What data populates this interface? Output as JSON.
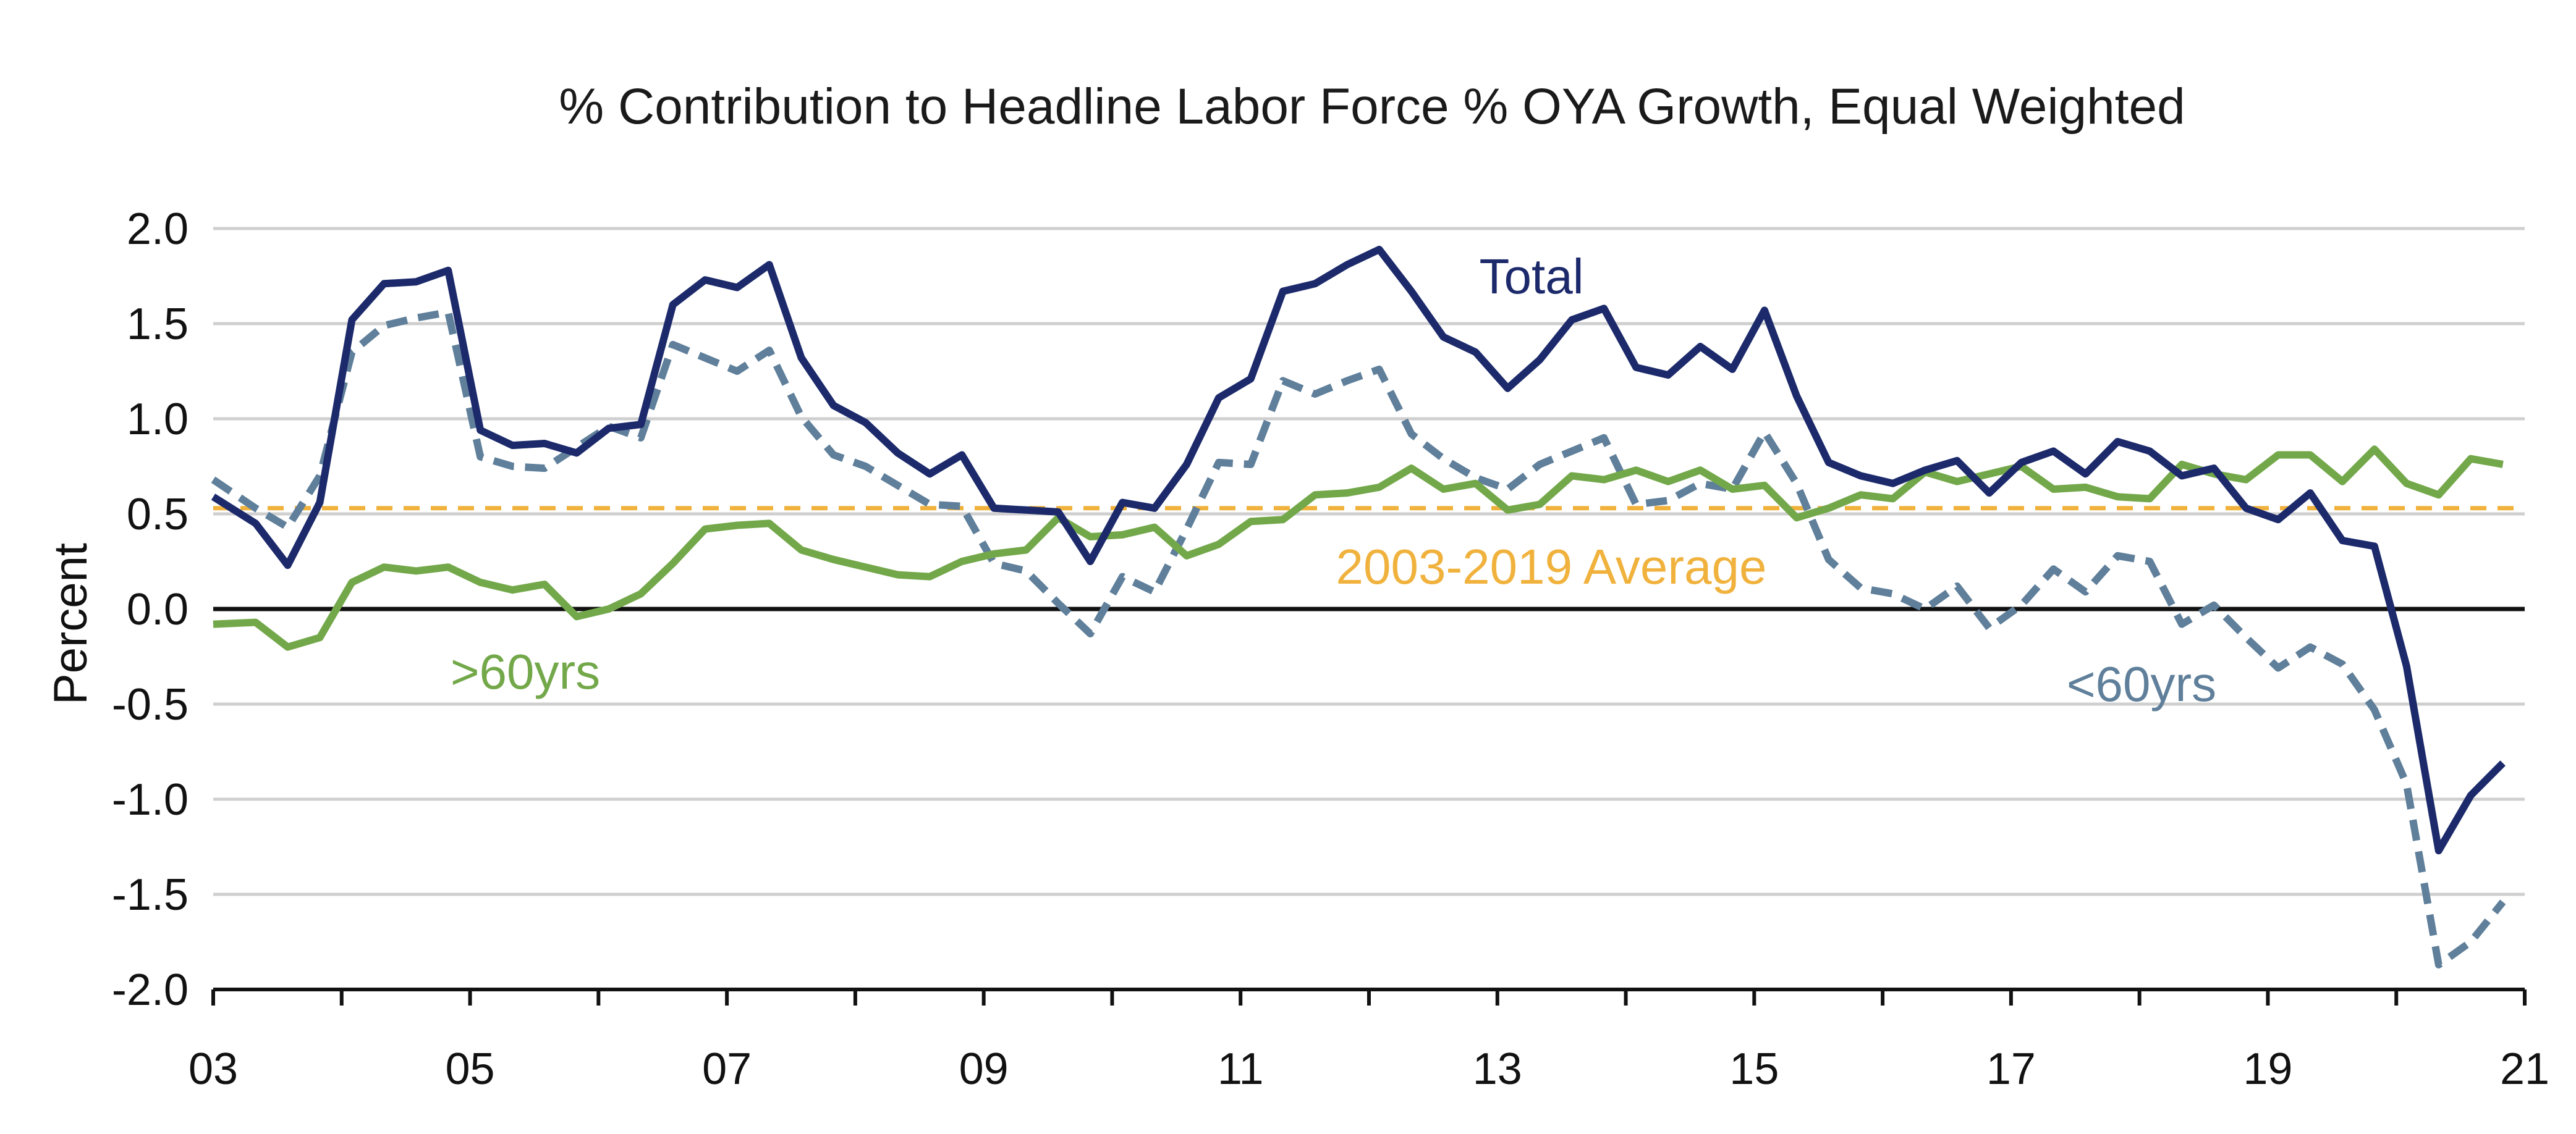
{
  "chart_data": {
    "type": "line",
    "title": "% Contribution to Headline Labor Force % OYA Growth, Equal Weighted",
    "xlabel": "",
    "ylabel": "Percent",
    "xlim": [
      2003,
      2021
    ],
    "ylim": [
      -2.0,
      2.0
    ],
    "x_ticks": [
      2003,
      2005,
      2007,
      2009,
      2011,
      2013,
      2015,
      2017,
      2019,
      2021
    ],
    "x_tick_labels": [
      "03",
      "05",
      "07",
      "09",
      "11",
      "13",
      "15",
      "17",
      "19",
      "21"
    ],
    "y_ticks": [
      2.0,
      1.5,
      1.0,
      0.5,
      0.0,
      -0.5,
      -1.0,
      -1.5,
      -2.0
    ],
    "y_tick_labels": [
      "2.0",
      "1.5",
      "1.0",
      "0.5",
      "0.0",
      "-0.5",
      "-1.0",
      "-1.5",
      "-2.0"
    ],
    "grid": "horizontal",
    "zero_line": true,
    "reference_lines": [
      {
        "name": "2003-2019 Average",
        "value": 0.53,
        "color": "#f0b23d",
        "style": "dashed"
      }
    ],
    "series": [
      {
        "name": "Total",
        "color": "#1c2a6b",
        "style": "solid",
        "x": [
          2003.0,
          2003.33,
          2003.58,
          2003.83,
          2004.08,
          2004.33,
          2004.58,
          2004.83,
          2005.08,
          2005.33,
          2005.58,
          2005.83,
          2006.08,
          2006.33,
          2006.58,
          2006.83,
          2007.08,
          2007.33,
          2007.58,
          2007.83,
          2008.08,
          2008.33,
          2008.58,
          2008.83,
          2009.08,
          2009.33,
          2009.58,
          2009.83,
          2010.08,
          2010.33,
          2010.58,
          2010.83,
          2011.08,
          2011.33,
          2011.58,
          2011.83,
          2012.08,
          2012.33,
          2012.58,
          2012.83,
          2013.08,
          2013.33,
          2013.58,
          2013.83,
          2014.08,
          2014.33,
          2014.58,
          2014.83,
          2015.08,
          2015.33,
          2015.58,
          2015.83,
          2016.08,
          2016.33,
          2016.58,
          2016.83,
          2017.08,
          2017.33,
          2017.58,
          2017.83,
          2018.08,
          2018.33,
          2018.58,
          2018.83,
          2019.08,
          2019.33,
          2019.58,
          2019.83,
          2020.08,
          2020.33,
          2020.58,
          2020.83
        ],
        "y": [
          0.59,
          0.45,
          0.23,
          0.56,
          1.52,
          1.71,
          1.72,
          1.78,
          0.94,
          0.86,
          0.87,
          0.82,
          0.95,
          0.97,
          1.6,
          1.73,
          1.69,
          1.81,
          1.32,
          1.07,
          0.98,
          0.82,
          0.71,
          0.81,
          0.53,
          0.52,
          0.51,
          0.25,
          0.56,
          0.53,
          0.76,
          1.11,
          1.21,
          1.67,
          1.71,
          1.81,
          1.89,
          1.67,
          1.43,
          1.35,
          1.16,
          1.31,
          1.52,
          1.58,
          1.27,
          1.23,
          1.38,
          1.26,
          1.57,
          1.12,
          0.77,
          0.7,
          0.66,
          0.73,
          0.78,
          0.61,
          0.77,
          0.83,
          0.71,
          0.88,
          0.83,
          0.7,
          0.74,
          0.53,
          0.47,
          0.61,
          0.36,
          0.33,
          -0.3,
          -1.27,
          -0.98,
          -0.81
        ]
      },
      {
        "name": "<60yrs",
        "color": "#5f7f9a",
        "style": "dashed",
        "x": [
          2003.0,
          2003.33,
          2003.58,
          2003.83,
          2004.08,
          2004.33,
          2004.58,
          2004.83,
          2005.08,
          2005.33,
          2005.58,
          2005.83,
          2006.08,
          2006.33,
          2006.58,
          2006.83,
          2007.08,
          2007.33,
          2007.58,
          2007.83,
          2008.08,
          2008.33,
          2008.58,
          2008.83,
          2009.08,
          2009.33,
          2009.58,
          2009.83,
          2010.08,
          2010.33,
          2010.58,
          2010.83,
          2011.08,
          2011.33,
          2011.58,
          2011.83,
          2012.08,
          2012.33,
          2012.58,
          2012.83,
          2013.08,
          2013.33,
          2013.58,
          2013.83,
          2014.08,
          2014.33,
          2014.58,
          2014.83,
          2015.08,
          2015.33,
          2015.58,
          2015.83,
          2016.08,
          2016.33,
          2016.58,
          2016.83,
          2017.08,
          2017.33,
          2017.58,
          2017.83,
          2018.08,
          2018.33,
          2018.58,
          2018.83,
          2019.08,
          2019.33,
          2019.58,
          2019.83,
          2020.08,
          2020.33,
          2020.58,
          2020.83
        ],
        "y": [
          0.68,
          0.53,
          0.43,
          0.7,
          1.35,
          1.49,
          1.53,
          1.56,
          0.8,
          0.75,
          0.74,
          0.85,
          0.96,
          0.9,
          1.39,
          1.32,
          1.25,
          1.36,
          1.01,
          0.81,
          0.75,
          0.65,
          0.55,
          0.54,
          0.24,
          0.2,
          0.03,
          -0.13,
          0.17,
          0.09,
          0.42,
          0.77,
          0.76,
          1.2,
          1.13,
          1.2,
          1.26,
          0.92,
          0.79,
          0.69,
          0.63,
          0.76,
          0.83,
          0.9,
          0.55,
          0.57,
          0.66,
          0.63,
          0.93,
          0.66,
          0.26,
          0.11,
          0.08,
          0.0,
          0.12,
          -0.1,
          0.02,
          0.21,
          0.09,
          0.28,
          0.25,
          -0.08,
          0.02,
          -0.15,
          -0.31,
          -0.2,
          -0.29,
          -0.53,
          -0.92,
          -1.87,
          -1.75,
          -1.54
        ]
      },
      {
        "name": ">60yrs",
        "color": "#73a84a",
        "style": "solid",
        "x": [
          2003.0,
          2003.33,
          2003.58,
          2003.83,
          2004.08,
          2004.33,
          2004.58,
          2004.83,
          2005.08,
          2005.33,
          2005.58,
          2005.83,
          2006.08,
          2006.33,
          2006.58,
          2006.83,
          2007.08,
          2007.33,
          2007.58,
          2007.83,
          2008.08,
          2008.33,
          2008.58,
          2008.83,
          2009.08,
          2009.33,
          2009.58,
          2009.83,
          2010.08,
          2010.33,
          2010.58,
          2010.83,
          2011.08,
          2011.33,
          2011.58,
          2011.83,
          2012.08,
          2012.33,
          2012.58,
          2012.83,
          2013.08,
          2013.33,
          2013.58,
          2013.83,
          2014.08,
          2014.33,
          2014.58,
          2014.83,
          2015.08,
          2015.33,
          2015.58,
          2015.83,
          2016.08,
          2016.33,
          2016.58,
          2016.83,
          2017.08,
          2017.33,
          2017.58,
          2017.83,
          2018.08,
          2018.33,
          2018.58,
          2018.83,
          2019.08,
          2019.33,
          2019.58,
          2019.83,
          2020.08,
          2020.33,
          2020.58,
          2020.83
        ],
        "y": [
          -0.08,
          -0.07,
          -0.2,
          -0.15,
          0.14,
          0.22,
          0.2,
          0.22,
          0.14,
          0.1,
          0.13,
          -0.04,
          0.0,
          0.08,
          0.24,
          0.42,
          0.44,
          0.45,
          0.31,
          0.26,
          0.22,
          0.18,
          0.17,
          0.25,
          0.29,
          0.31,
          0.48,
          0.38,
          0.39,
          0.43,
          0.28,
          0.34,
          0.46,
          0.47,
          0.6,
          0.61,
          0.64,
          0.74,
          0.63,
          0.66,
          0.52,
          0.55,
          0.7,
          0.68,
          0.73,
          0.67,
          0.73,
          0.63,
          0.65,
          0.48,
          0.53,
          0.6,
          0.58,
          0.72,
          0.67,
          0.71,
          0.75,
          0.63,
          0.64,
          0.59,
          0.58,
          0.76,
          0.71,
          0.68,
          0.81,
          0.81,
          0.67,
          0.84,
          0.66,
          0.6,
          0.79,
          0.76
        ]
      }
    ],
    "annotations": [
      {
        "text": "Total",
        "series": "Total"
      },
      {
        "text": "<60yrs",
        "series": "<60yrs"
      },
      {
        "text": ">60yrs",
        "series": ">60yrs"
      },
      {
        "text": "2003-2019 Average",
        "series": "2003-2019 Average"
      }
    ]
  }
}
